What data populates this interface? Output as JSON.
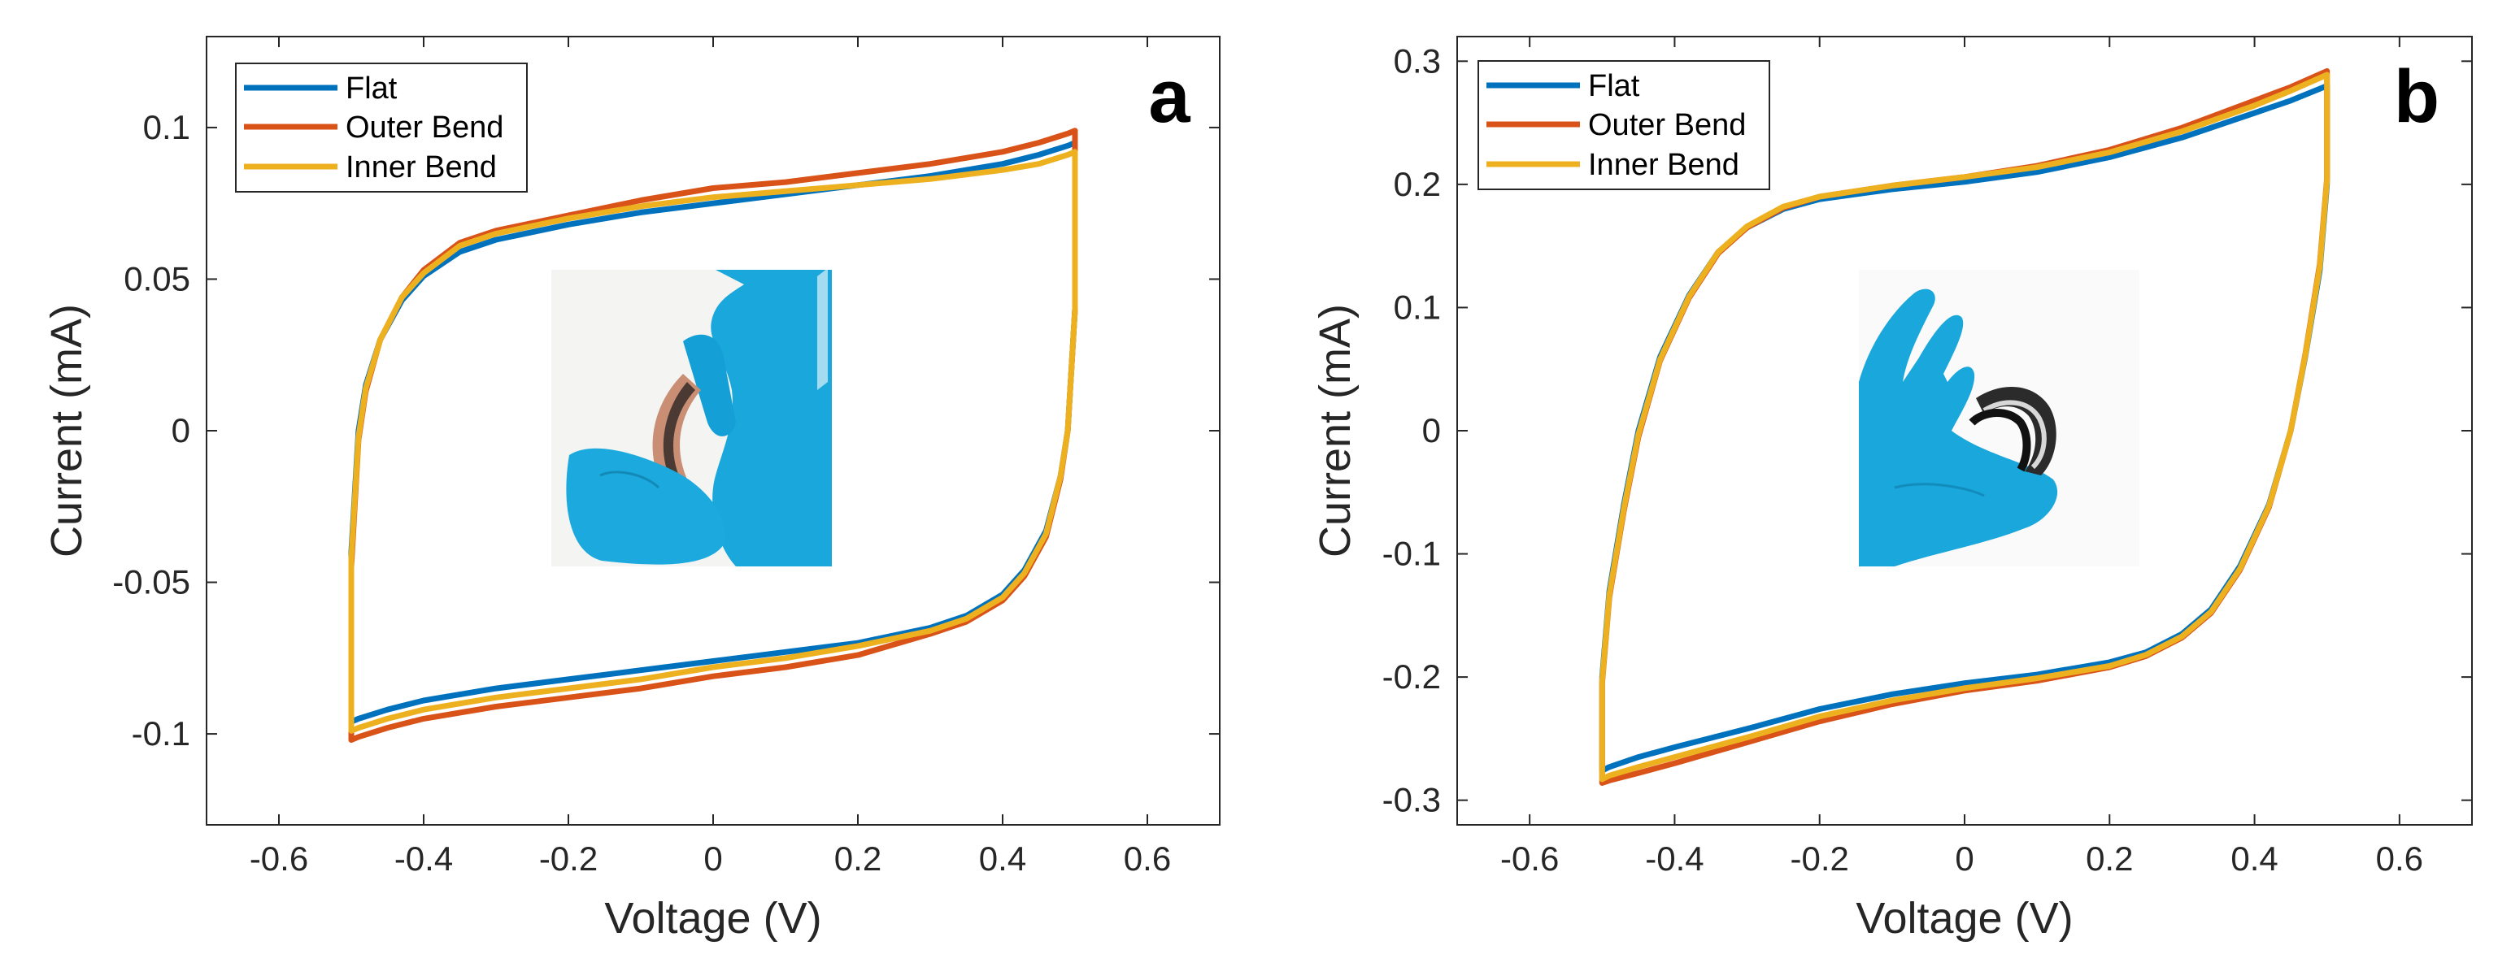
{
  "chart_data": [
    {
      "type": "line",
      "panel_label": "a",
      "xlabel": "Voltage (V)",
      "ylabel": "Current (mA)",
      "xlim": [
        -0.7,
        0.7
      ],
      "ylim": [
        -0.13,
        0.13
      ],
      "xticks": [
        -0.6,
        -0.4,
        -0.2,
        0,
        0.2,
        0.4,
        0.6
      ],
      "xtick_labels": [
        "-0.6",
        "-0.4",
        "-0.2",
        "0",
        "0.2",
        "0.4",
        "0.6"
      ],
      "yticks": [
        -0.1,
        -0.05,
        0,
        0.05,
        0.1
      ],
      "ytick_labels": [
        "-0.1",
        "-0.05",
        "0",
        "0.05",
        "0.1"
      ],
      "legend_position": "top-left",
      "inset": "photo of hand in blue glove bending the device outward",
      "series": [
        {
          "name": "Flat",
          "color": "#0072BD",
          "x": [
            -0.5,
            -0.49,
            -0.48,
            -0.46,
            -0.43,
            -0.4,
            -0.35,
            -0.3,
            -0.2,
            -0.1,
            0,
            0.1,
            0.2,
            0.3,
            0.4,
            0.45,
            0.49,
            0.5,
            0.5,
            0.49,
            0.48,
            0.46,
            0.43,
            0.4,
            0.35,
            0.3,
            0.2,
            0.1,
            0,
            -0.1,
            -0.2,
            -0.3,
            -0.4,
            -0.45,
            -0.49,
            -0.5,
            -0.5
          ],
          "y": [
            -0.04,
            0.0,
            0.015,
            0.03,
            0.043,
            0.051,
            0.059,
            0.063,
            0.068,
            0.072,
            0.075,
            0.078,
            0.081,
            0.084,
            0.088,
            0.091,
            0.094,
            0.095,
            0.04,
            0.0,
            -0.015,
            -0.033,
            -0.046,
            -0.054,
            -0.061,
            -0.065,
            -0.07,
            -0.073,
            -0.076,
            -0.079,
            -0.082,
            -0.085,
            -0.089,
            -0.092,
            -0.095,
            -0.096,
            -0.04
          ]
        },
        {
          "name": "Outer Bend",
          "color": "#D95319",
          "x": [
            -0.5,
            -0.49,
            -0.48,
            -0.46,
            -0.43,
            -0.4,
            -0.35,
            -0.3,
            -0.2,
            -0.1,
            0,
            0.1,
            0.2,
            0.3,
            0.4,
            0.45,
            0.49,
            0.5,
            0.5,
            0.49,
            0.48,
            0.46,
            0.43,
            0.4,
            0.35,
            0.3,
            0.2,
            0.1,
            0,
            -0.1,
            -0.2,
            -0.3,
            -0.4,
            -0.45,
            -0.49,
            -0.5,
            -0.5
          ],
          "y": [
            -0.045,
            -0.003,
            0.013,
            0.03,
            0.044,
            0.053,
            0.062,
            0.066,
            0.071,
            0.076,
            0.08,
            0.082,
            0.085,
            0.088,
            0.092,
            0.095,
            0.098,
            0.099,
            0.04,
            0.0,
            -0.016,
            -0.035,
            -0.048,
            -0.056,
            -0.063,
            -0.067,
            -0.074,
            -0.078,
            -0.081,
            -0.085,
            -0.088,
            -0.091,
            -0.095,
            -0.098,
            -0.101,
            -0.102,
            -0.045
          ]
        },
        {
          "name": "Inner Bend",
          "color": "#EDB120",
          "x": [
            -0.5,
            -0.49,
            -0.48,
            -0.46,
            -0.43,
            -0.4,
            -0.35,
            -0.3,
            -0.2,
            -0.1,
            0,
            0.1,
            0.2,
            0.3,
            0.4,
            0.45,
            0.49,
            0.5,
            0.5,
            0.49,
            0.48,
            0.46,
            0.43,
            0.4,
            0.35,
            0.3,
            0.2,
            0.1,
            0,
            -0.1,
            -0.2,
            -0.3,
            -0.4,
            -0.45,
            -0.49,
            -0.5,
            -0.5
          ],
          "y": [
            -0.042,
            -0.002,
            0.014,
            0.03,
            0.044,
            0.052,
            0.061,
            0.065,
            0.07,
            0.074,
            0.077,
            0.079,
            0.081,
            0.083,
            0.086,
            0.088,
            0.091,
            0.092,
            0.04,
            0.0,
            -0.015,
            -0.034,
            -0.047,
            -0.055,
            -0.062,
            -0.066,
            -0.071,
            -0.075,
            -0.078,
            -0.082,
            -0.085,
            -0.088,
            -0.092,
            -0.095,
            -0.098,
            -0.099,
            -0.042
          ]
        }
      ]
    },
    {
      "type": "line",
      "panel_label": "b",
      "xlabel": "Voltage (V)",
      "ylabel": "Current (mA)",
      "xlim": [
        -0.7,
        0.7
      ],
      "ylim": [
        -0.32,
        0.32
      ],
      "xticks": [
        -0.6,
        -0.4,
        -0.2,
        0,
        0.2,
        0.4,
        0.6
      ],
      "xtick_labels": [
        "-0.6",
        "-0.4",
        "-0.2",
        "0",
        "0.2",
        "0.4",
        "0.6"
      ],
      "yticks": [
        -0.3,
        -0.2,
        -0.1,
        0,
        0.1,
        0.2,
        0.3
      ],
      "ytick_labels": [
        "-0.3",
        "-0.2",
        "-0.1",
        "0",
        "0.1",
        "0.2",
        "0.3"
      ],
      "legend_position": "top-left",
      "inset": "photo of hand in blue glove bending the device inward",
      "series": [
        {
          "name": "Flat",
          "color": "#0072BD",
          "x": [
            -0.5,
            -0.49,
            -0.47,
            -0.45,
            -0.42,
            -0.38,
            -0.34,
            -0.3,
            -0.25,
            -0.2,
            -0.1,
            0,
            0.1,
            0.2,
            0.3,
            0.4,
            0.45,
            0.5,
            0.5,
            0.49,
            0.47,
            0.45,
            0.42,
            0.38,
            0.34,
            0.3,
            0.25,
            0.2,
            0.1,
            0,
            -0.1,
            -0.2,
            -0.3,
            -0.4,
            -0.45,
            -0.49,
            -0.5,
            -0.5
          ],
          "y": [
            -0.2,
            -0.13,
            -0.06,
            0.0,
            0.06,
            0.11,
            0.145,
            0.165,
            0.18,
            0.188,
            0.196,
            0.202,
            0.21,
            0.222,
            0.238,
            0.258,
            0.268,
            0.28,
            0.2,
            0.13,
            0.06,
            0.0,
            -0.06,
            -0.11,
            -0.145,
            -0.165,
            -0.18,
            -0.188,
            -0.198,
            -0.205,
            -0.214,
            -0.226,
            -0.242,
            -0.257,
            -0.265,
            -0.273,
            -0.276,
            -0.2
          ]
        },
        {
          "name": "Outer Bend",
          "color": "#D95319",
          "x": [
            -0.5,
            -0.49,
            -0.47,
            -0.45,
            -0.42,
            -0.38,
            -0.34,
            -0.3,
            -0.25,
            -0.2,
            -0.1,
            0,
            0.1,
            0.2,
            0.3,
            0.4,
            0.45,
            0.5,
            0.5,
            0.49,
            0.47,
            0.45,
            0.42,
            0.38,
            0.34,
            0.3,
            0.25,
            0.2,
            0.1,
            0,
            -0.1,
            -0.2,
            -0.3,
            -0.4,
            -0.45,
            -0.49,
            -0.5,
            -0.5
          ],
          "y": [
            -0.205,
            -0.135,
            -0.065,
            -0.005,
            0.057,
            0.108,
            0.144,
            0.165,
            0.181,
            0.19,
            0.199,
            0.206,
            0.215,
            0.228,
            0.246,
            0.268,
            0.279,
            0.292,
            0.205,
            0.135,
            0.062,
            0.0,
            -0.062,
            -0.113,
            -0.148,
            -0.168,
            -0.183,
            -0.192,
            -0.203,
            -0.211,
            -0.222,
            -0.236,
            -0.253,
            -0.27,
            -0.278,
            -0.284,
            -0.286,
            -0.205
          ]
        },
        {
          "name": "Inner Bend",
          "color": "#EDB120",
          "x": [
            -0.5,
            -0.49,
            -0.47,
            -0.45,
            -0.42,
            -0.38,
            -0.34,
            -0.3,
            -0.25,
            -0.2,
            -0.1,
            0,
            0.1,
            0.2,
            0.3,
            0.4,
            0.45,
            0.5,
            0.5,
            0.49,
            0.47,
            0.45,
            0.42,
            0.38,
            0.34,
            0.3,
            0.25,
            0.2,
            0.1,
            0,
            -0.1,
            -0.2,
            -0.3,
            -0.4,
            -0.45,
            -0.49,
            -0.5,
            -0.5
          ],
          "y": [
            -0.203,
            -0.133,
            -0.063,
            -0.003,
            0.058,
            0.109,
            0.145,
            0.166,
            0.182,
            0.19,
            0.199,
            0.206,
            0.214,
            0.226,
            0.243,
            0.264,
            0.276,
            0.289,
            0.203,
            0.133,
            0.061,
            0.0,
            -0.061,
            -0.112,
            -0.147,
            -0.167,
            -0.182,
            -0.191,
            -0.201,
            -0.209,
            -0.219,
            -0.232,
            -0.249,
            -0.265,
            -0.273,
            -0.28,
            -0.283,
            -0.203
          ]
        }
      ]
    }
  ]
}
